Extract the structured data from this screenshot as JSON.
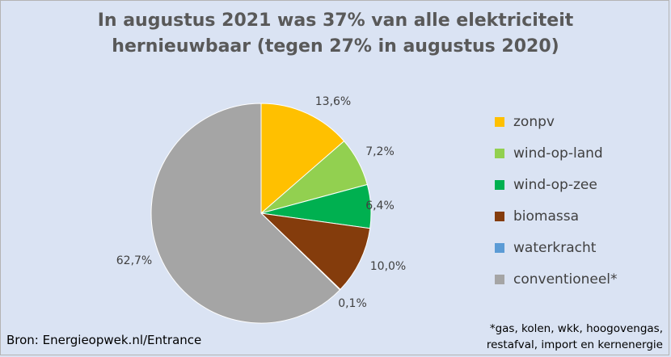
{
  "chart_data": {
    "type": "pie",
    "title": "In augustus 2021 was 37% van alle elektriciteit hernieuwbaar (tegen 27% in augustus 2020)",
    "title_lines": [
      "In augustus 2021 was 37% van alle elektriciteit",
      "hernieuwbaar (tegen 27% in augustus 2020)"
    ],
    "slices": [
      {
        "label": "zonpv",
        "value": 13.6,
        "value_label": "13,6%",
        "color": "#ffc000"
      },
      {
        "label": "wind-op-land",
        "value": 7.2,
        "value_label": "7,2%",
        "color": "#92d050"
      },
      {
        "label": "wind-op-zee",
        "value": 6.4,
        "value_label": "6,4%",
        "color": "#00b050"
      },
      {
        "label": "biomassa",
        "value": 10.0,
        "value_label": "10,0%",
        "color": "#843c0c"
      },
      {
        "label": "waterkracht",
        "value": 0.1,
        "value_label": "0,1%",
        "color": "#5b9bd5"
      },
      {
        "label": "conventioneel*",
        "value": 62.7,
        "value_label": "62,7%",
        "color": "#a5a5a5"
      }
    ],
    "start_angle_deg": 0,
    "direction": "clockwise",
    "legend_position": "right",
    "source": "Bron: Energieopwek.nl/Entrance",
    "footnote_lines": [
      "*gas, kolen, wkk, hoogovengas,",
      "restafval, import en kernenergie"
    ],
    "background_color": "#dae3f3"
  }
}
